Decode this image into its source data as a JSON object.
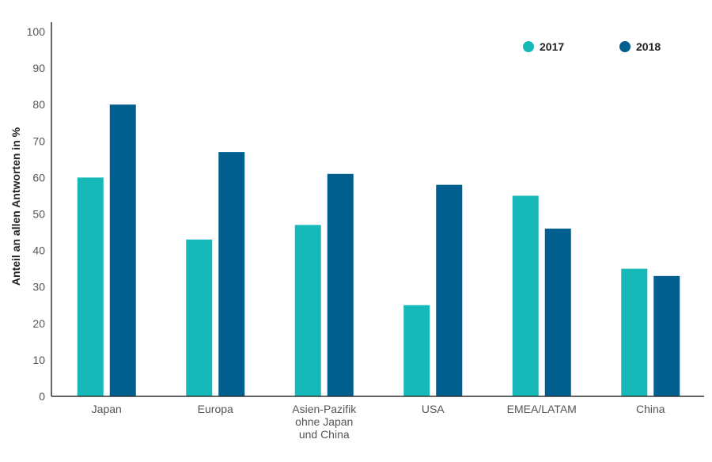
{
  "chart_data": {
    "type": "bar",
    "categories": [
      "Japan",
      "Europa",
      "Asien-Pazifik ohne Japan und China",
      "USA",
      "EMEA/LATAM",
      "China"
    ],
    "category_label_lines": [
      [
        "Japan"
      ],
      [
        "Europa"
      ],
      [
        "Asien-Pazifik",
        "ohne Japan",
        "und China"
      ],
      [
        "USA"
      ],
      [
        "EMEA/LATAM"
      ],
      [
        "China"
      ]
    ],
    "series": [
      {
        "name": "2017",
        "color": "#16b8b8",
        "values": [
          60,
          43,
          47,
          25,
          55,
          35
        ]
      },
      {
        "name": "2018",
        "color": "#005f8f",
        "values": [
          80,
          67,
          61,
          58,
          46,
          33
        ]
      }
    ],
    "ylabel": "Anteil an allen Antworten in %",
    "xlabel": "",
    "ylim": [
      0,
      100
    ],
    "yticks": [
      0,
      10,
      20,
      30,
      40,
      50,
      60,
      70,
      80,
      90,
      100
    ],
    "grid": false,
    "legend_position": "top-right",
    "axis_color": "#333333"
  }
}
